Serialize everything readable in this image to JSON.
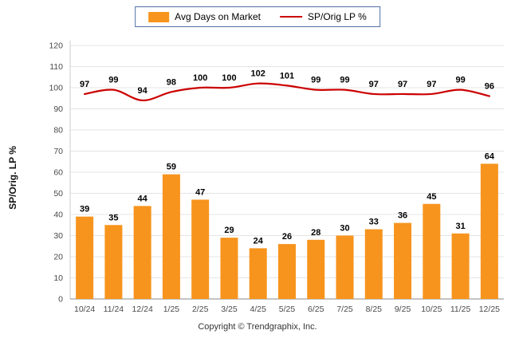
{
  "legend": {
    "bar_label": "Avg Days on Market",
    "line_label": "SP/Orig LP %"
  },
  "footer": {
    "copyright": "Copyright © Trendgraphix, Inc."
  },
  "colors": {
    "bar": "#F7941D",
    "line": "#CC0000",
    "grid": "#e4e4e4",
    "value_label": "#000000"
  },
  "chart_data": {
    "type": "bar",
    "categories": [
      "10/24",
      "11/24",
      "12/24",
      "1/25",
      "2/25",
      "3/25",
      "4/25",
      "5/25",
      "6/25",
      "7/25",
      "8/25",
      "9/25",
      "10/25",
      "11/25",
      "12/25"
    ],
    "series": [
      {
        "name": "Avg Days on Market",
        "type": "bar",
        "values": [
          39,
          35,
          44,
          59,
          47,
          29,
          24,
          26,
          28,
          30,
          33,
          36,
          45,
          31,
          64
        ]
      },
      {
        "name": "SP/Orig LP %",
        "type": "line",
        "values": [
          97,
          99,
          94,
          98,
          100,
          100,
          102,
          101,
          99,
          99,
          97,
          97,
          97,
          99,
          96
        ]
      }
    ],
    "title": "",
    "xlabel": "",
    "ylabel": "SP/Orig. LP %",
    "ylim": [
      0,
      120
    ],
    "ytick_step": 10,
    "grid": true,
    "legend_position": "top"
  }
}
